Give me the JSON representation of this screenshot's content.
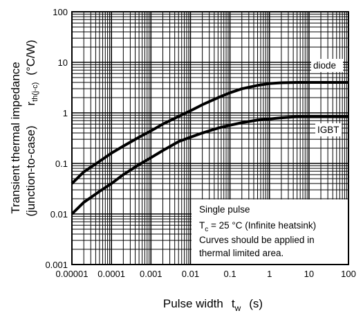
{
  "chart_data": {
    "type": "line",
    "title": "",
    "xlabel": {
      "main": "Pulse width",
      "symbol": "t",
      "subscript": "w",
      "unit": "(s)"
    },
    "ylabel": {
      "line1": "Transient thermal impedance",
      "line2": "(junction-to-case)",
      "symbol": "r",
      "subscript": "th(j-c)",
      "unit": "(°C/W)"
    },
    "x_scale": "log",
    "y_scale": "log",
    "xlim": [
      1e-05,
      100
    ],
    "ylim": [
      0.001,
      100
    ],
    "grid": true,
    "x_ticks": [
      {
        "value": 1e-05,
        "label": "0.00001"
      },
      {
        "value": 0.0001,
        "label": "0.0001"
      },
      {
        "value": 0.001,
        "label": "0.001"
      },
      {
        "value": 0.01,
        "label": "0.01"
      },
      {
        "value": 0.1,
        "label": "0.1"
      },
      {
        "value": 1,
        "label": "1"
      },
      {
        "value": 10,
        "label": "10"
      },
      {
        "value": 100,
        "label": "100"
      }
    ],
    "y_ticks": [
      {
        "value": 0.001,
        "label": "0.001"
      },
      {
        "value": 0.01,
        "label": "0.01"
      },
      {
        "value": 0.1,
        "label": "0.1"
      },
      {
        "value": 1,
        "label": "1"
      },
      {
        "value": 10,
        "label": "10"
      },
      {
        "value": 100,
        "label": "100"
      }
    ],
    "series": [
      {
        "name": "diode",
        "x": [
          1e-05,
          2e-05,
          5e-05,
          0.0001,
          0.0002,
          0.0005,
          0.001,
          0.002,
          0.005,
          0.01,
          0.02,
          0.05,
          0.1,
          0.2,
          0.5,
          1,
          2,
          5,
          10,
          100
        ],
        "y": [
          0.04,
          0.068,
          0.11,
          0.16,
          0.22,
          0.33,
          0.44,
          0.6,
          0.85,
          1.1,
          1.45,
          2.0,
          2.5,
          3.0,
          3.5,
          3.8,
          3.95,
          4.0,
          4.0,
          4.0
        ]
      },
      {
        "name": "IGBT",
        "x": [
          1e-05,
          2e-05,
          5e-05,
          0.0001,
          0.0002,
          0.0005,
          0.001,
          0.002,
          0.005,
          0.01,
          0.02,
          0.05,
          0.1,
          0.2,
          0.5,
          1,
          2,
          5,
          10,
          100
        ],
        "y": [
          0.01,
          0.017,
          0.028,
          0.04,
          0.06,
          0.095,
          0.13,
          0.18,
          0.27,
          0.33,
          0.4,
          0.5,
          0.57,
          0.64,
          0.72,
          0.76,
          0.8,
          0.84,
          0.85,
          0.85
        ]
      }
    ],
    "annotation": {
      "line1": "Single pulse",
      "line2_symbol": "T",
      "line2_sub": "c",
      "line2_rest": " = 25 °C (Infinite heatsink)",
      "line3": "Curves should be applied in",
      "line4": "thermal limited area."
    }
  }
}
